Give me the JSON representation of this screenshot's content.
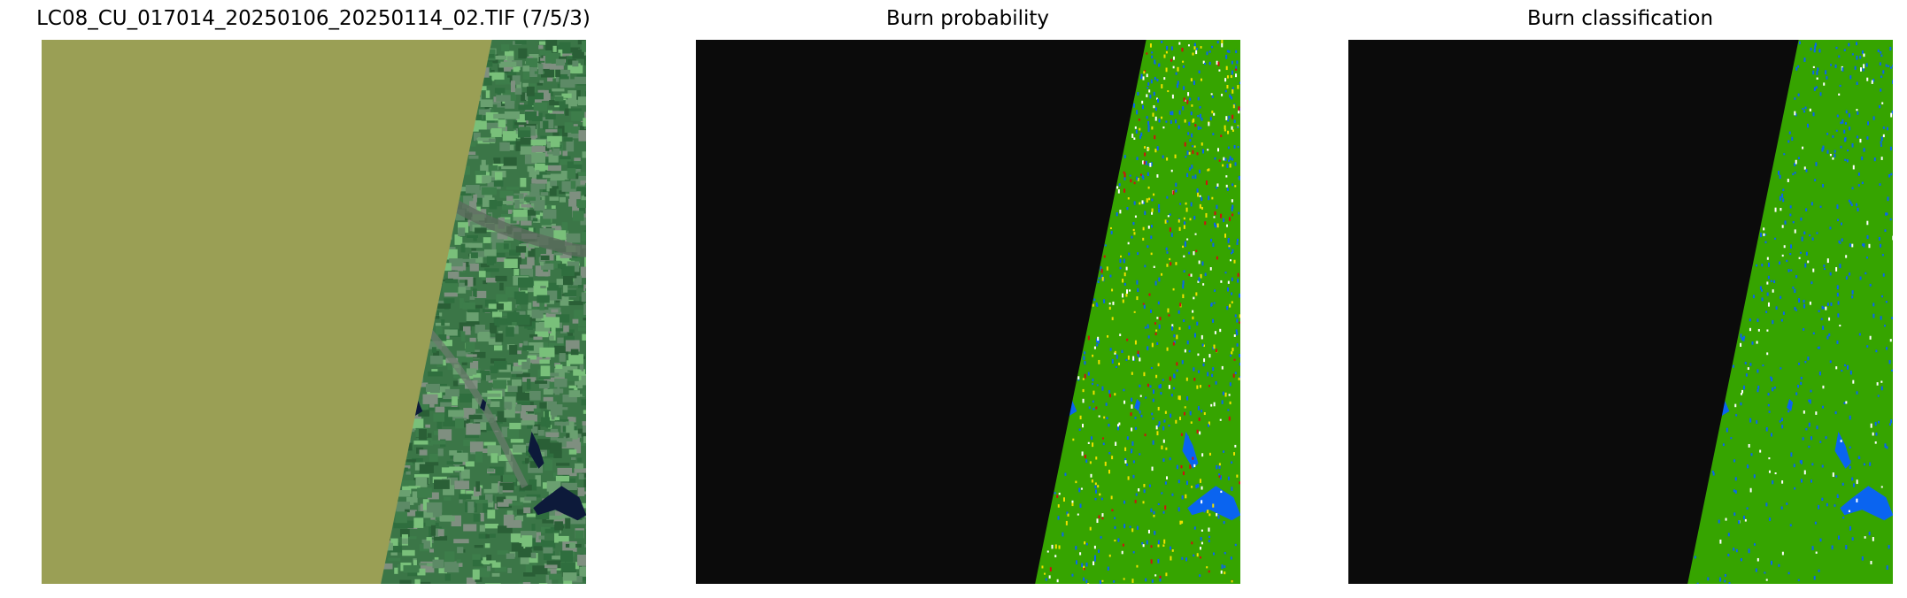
{
  "panels": [
    {
      "title": "LC08_CU_017014_20250106_20250114_02.TIF (7/5/3)",
      "type": "rgb-composite"
    },
    {
      "title": "Burn probability",
      "type": "probability-map"
    },
    {
      "title": "Burn classification",
      "type": "classification-map"
    }
  ],
  "colors": {
    "nodata_rgb": "#9a9f55",
    "nodata_map": "#0b0b0b",
    "unburned": "#36a400",
    "water": "#0a64f0",
    "burn_low": "#f0e000",
    "burn_high": "#d01010",
    "cloud": "#ffffff"
  }
}
